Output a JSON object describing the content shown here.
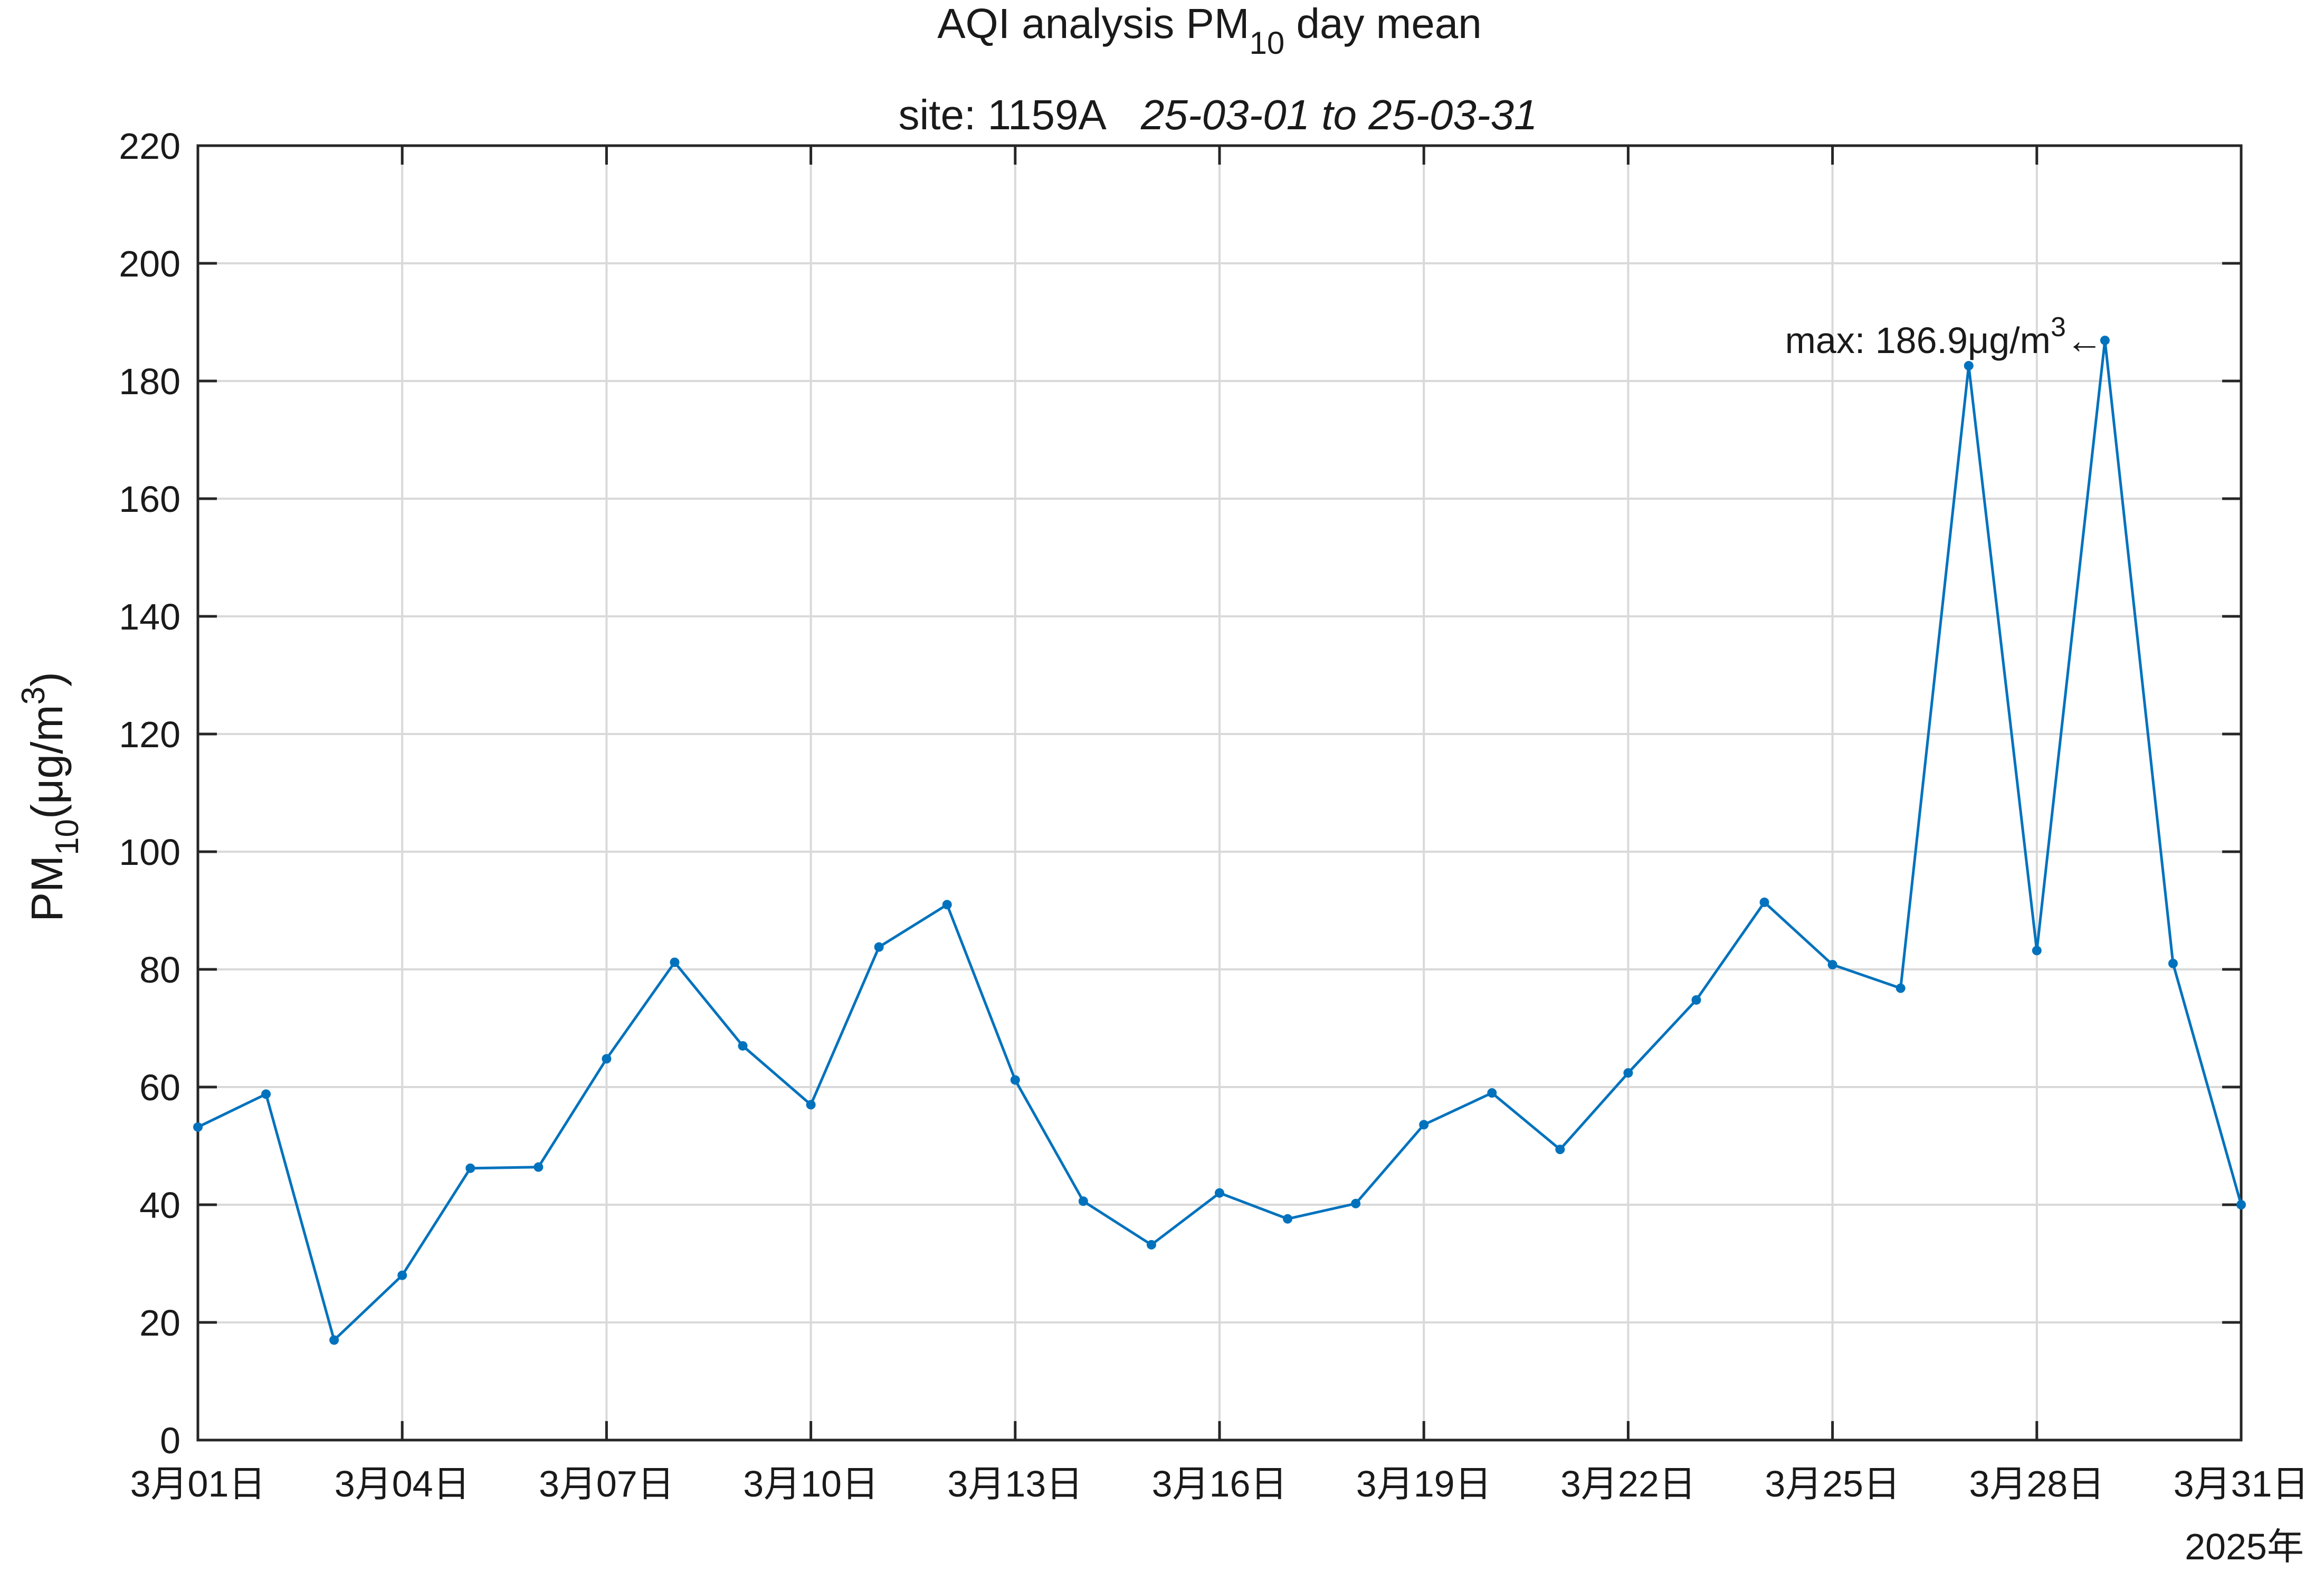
{
  "chart_data": {
    "type": "line",
    "title_main": "AQI analysis PM",
    "title_sub": "10",
    "title_tail": " day mean",
    "subtitle_site": "site: 1159A",
    "subtitle_range": "25-03-01 to 25-03-31",
    "ylabel_main": "PM",
    "ylabel_sub": "10",
    "ylabel_unit": "(μg/m",
    "ylabel_sup": "3",
    "ylabel_close": ")",
    "year_label": "2025年",
    "ylim": [
      0,
      220
    ],
    "yticks": [
      "0",
      "20",
      "40",
      "60",
      "80",
      "100",
      "120",
      "140",
      "160",
      "180",
      "200",
      "220"
    ],
    "xlim": [
      1,
      31
    ],
    "xticks": [
      {
        "day": 1,
        "label": "3月01日"
      },
      {
        "day": 4,
        "label": "3月04日"
      },
      {
        "day": 7,
        "label": "3月07日"
      },
      {
        "day": 10,
        "label": "3月10日"
      },
      {
        "day": 13,
        "label": "3月13日"
      },
      {
        "day": 16,
        "label": "3月16日"
      },
      {
        "day": 19,
        "label": "3月19日"
      },
      {
        "day": 22,
        "label": "3月22日"
      },
      {
        "day": 25,
        "label": "3月25日"
      },
      {
        "day": 28,
        "label": "3月28日"
      },
      {
        "day": 31,
        "label": "3月31日"
      }
    ],
    "grid": true,
    "series": [
      {
        "color": "#0072BD",
        "x": [
          1,
          2,
          3,
          4,
          5,
          6,
          7,
          8,
          9,
          10,
          11,
          12,
          13,
          14,
          15,
          16,
          17,
          18,
          19,
          20,
          21,
          22,
          23,
          24,
          25,
          26,
          27,
          28,
          29,
          30,
          31
        ],
        "y": [
          53.2,
          58.8,
          17.0,
          28.0,
          46.2,
          46.4,
          64.8,
          81.2,
          67.0,
          57.0,
          83.8,
          91.0,
          61.2,
          40.6,
          33.2,
          42.0,
          37.6,
          40.2,
          53.6,
          59.0,
          49.4,
          62.4,
          74.8,
          91.4,
          80.8,
          76.8,
          182.6,
          83.2,
          186.9,
          81.0,
          40.0
        ]
      }
    ],
    "annotation": {
      "text": "max: 186.9μg/m",
      "sup": "3",
      "arrow": "←",
      "x": 29,
      "y": 186.9
    }
  }
}
